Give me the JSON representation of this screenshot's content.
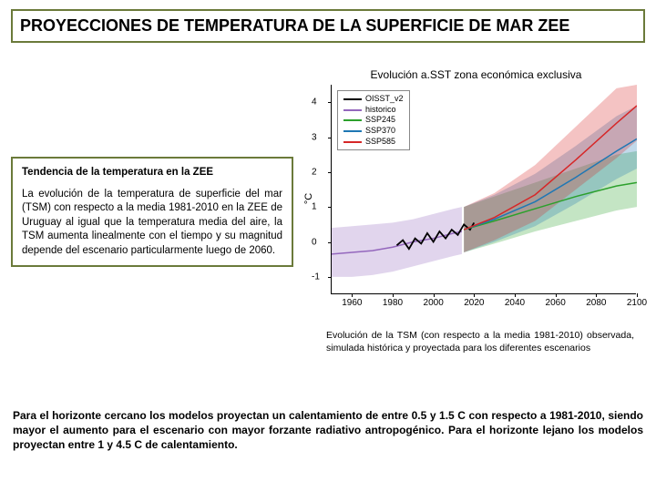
{
  "title": "PROYECCIONES DE TEMPERATURA DE LA SUPERFICIE DE MAR ZEE",
  "description": {
    "heading": "Tendencia de la temperatura en la ZEE",
    "body": "La evolución de la temperatura de superficie del mar (TSM) con respecto a la media 1981-2010 en la ZEE de Uruguay al igual que la temperatura media del aire, la TSM aumenta linealmente con el tiempo y su magnitud depende del escenario particularmente luego de 2060."
  },
  "chart": {
    "type": "line",
    "title": "Evolución a.SST zona económica exclusiva",
    "ylabel": "°C",
    "ylim": [
      -1.5,
      4.5
    ],
    "yticks": [
      -1,
      0,
      1,
      2,
      3,
      4
    ],
    "xlim": [
      1950,
      2100
    ],
    "xticks": [
      1960,
      1980,
      2000,
      2020,
      2040,
      2060,
      2080,
      2100
    ],
    "plot_bg": "#ffffff",
    "legend": {
      "position": "upper-left",
      "items": [
        {
          "label": "OISST_v2",
          "color": "#000000"
        },
        {
          "label": "historico",
          "color": "#9467bd"
        },
        {
          "label": "SSP245",
          "color": "#2ca02c"
        },
        {
          "label": "SSP370",
          "color": "#1f77b4"
        },
        {
          "label": "SSP585",
          "color": "#d62728"
        }
      ]
    },
    "series": [
      {
        "name": "historico",
        "color": "#9467bd",
        "band_color": "#9467bd",
        "line": [
          {
            "x": 1950,
            "y": -0.35
          },
          {
            "x": 1960,
            "y": -0.3
          },
          {
            "x": 1970,
            "y": -0.25
          },
          {
            "x": 1980,
            "y": -0.15
          },
          {
            "x": 1990,
            "y": 0.0
          },
          {
            "x": 2000,
            "y": 0.1
          },
          {
            "x": 2010,
            "y": 0.25
          },
          {
            "x": 2014,
            "y": 0.3
          }
        ],
        "band": [
          {
            "x": 1950,
            "lo": -1.0,
            "hi": 0.4
          },
          {
            "x": 1960,
            "lo": -1.0,
            "hi": 0.45
          },
          {
            "x": 1970,
            "lo": -0.95,
            "hi": 0.5
          },
          {
            "x": 1980,
            "lo": -0.85,
            "hi": 0.55
          },
          {
            "x": 1990,
            "lo": -0.7,
            "hi": 0.65
          },
          {
            "x": 2000,
            "lo": -0.55,
            "hi": 0.8
          },
          {
            "x": 2010,
            "lo": -0.4,
            "hi": 0.95
          },
          {
            "x": 2014,
            "lo": -0.35,
            "hi": 1.0
          }
        ]
      },
      {
        "name": "OISST_v2",
        "color": "#000000",
        "line": [
          {
            "x": 1982,
            "y": -0.1
          },
          {
            "x": 1985,
            "y": 0.05
          },
          {
            "x": 1988,
            "y": -0.2
          },
          {
            "x": 1991,
            "y": 0.1
          },
          {
            "x": 1994,
            "y": -0.05
          },
          {
            "x": 1997,
            "y": 0.25
          },
          {
            "x": 2000,
            "y": 0.0
          },
          {
            "x": 2003,
            "y": 0.3
          },
          {
            "x": 2006,
            "y": 0.1
          },
          {
            "x": 2009,
            "y": 0.35
          },
          {
            "x": 2012,
            "y": 0.2
          },
          {
            "x": 2015,
            "y": 0.5
          },
          {
            "x": 2018,
            "y": 0.35
          },
          {
            "x": 2020,
            "y": 0.55
          }
        ]
      },
      {
        "name": "SSP245",
        "color": "#2ca02c",
        "band_color": "#2ca02c",
        "line": [
          {
            "x": 2015,
            "y": 0.35
          },
          {
            "x": 2030,
            "y": 0.6
          },
          {
            "x": 2050,
            "y": 0.95
          },
          {
            "x": 2070,
            "y": 1.3
          },
          {
            "x": 2090,
            "y": 1.6
          },
          {
            "x": 2100,
            "y": 1.7
          }
        ],
        "band": [
          {
            "x": 2015,
            "lo": -0.3,
            "hi": 1.0
          },
          {
            "x": 2030,
            "lo": -0.05,
            "hi": 1.3
          },
          {
            "x": 2050,
            "lo": 0.3,
            "hi": 1.7
          },
          {
            "x": 2070,
            "lo": 0.6,
            "hi": 2.1
          },
          {
            "x": 2090,
            "lo": 0.9,
            "hi": 2.5
          },
          {
            "x": 2100,
            "lo": 1.0,
            "hi": 2.6
          }
        ]
      },
      {
        "name": "SSP370",
        "color": "#1f77b4",
        "band_color": "#1f77b4",
        "line": [
          {
            "x": 2015,
            "y": 0.35
          },
          {
            "x": 2030,
            "y": 0.65
          },
          {
            "x": 2050,
            "y": 1.15
          },
          {
            "x": 2070,
            "y": 1.85
          },
          {
            "x": 2090,
            "y": 2.6
          },
          {
            "x": 2100,
            "y": 2.95
          }
        ],
        "band": [
          {
            "x": 2015,
            "lo": -0.3,
            "hi": 1.0
          },
          {
            "x": 2030,
            "lo": 0.0,
            "hi": 1.35
          },
          {
            "x": 2050,
            "lo": 0.45,
            "hi": 1.95
          },
          {
            "x": 2070,
            "lo": 1.1,
            "hi": 2.75
          },
          {
            "x": 2090,
            "lo": 1.8,
            "hi": 3.6
          },
          {
            "x": 2100,
            "lo": 2.1,
            "hi": 3.9
          }
        ]
      },
      {
        "name": "SSP585",
        "color": "#d62728",
        "band_color": "#d62728",
        "line": [
          {
            "x": 2015,
            "y": 0.35
          },
          {
            "x": 2030,
            "y": 0.7
          },
          {
            "x": 2050,
            "y": 1.35
          },
          {
            "x": 2070,
            "y": 2.35
          },
          {
            "x": 2090,
            "y": 3.4
          },
          {
            "x": 2100,
            "y": 3.9
          }
        ],
        "band": [
          {
            "x": 2015,
            "lo": -0.3,
            "hi": 1.0
          },
          {
            "x": 2030,
            "lo": 0.05,
            "hi": 1.4
          },
          {
            "x": 2050,
            "lo": 0.6,
            "hi": 2.2
          },
          {
            "x": 2070,
            "lo": 1.5,
            "hi": 3.3
          },
          {
            "x": 2090,
            "lo": 2.4,
            "hi": 4.4
          },
          {
            "x": 2100,
            "lo": 2.9,
            "hi": 4.5
          }
        ]
      }
    ]
  },
  "caption": "Evolución de la TSM (con respecto a la media 1981-2010) observada, simulada histórica y proyectada para los diferentes escenarios",
  "footer": "Para el horizonte cercano los modelos proyectan un calentamiento de entre 0.5 y 1.5 C con respecto a 1981-2010, siendo mayor el aumento para el escenario con mayor forzante radiativo antropogénico. Para el horizonte lejano los modelos proyectan entre 1 y 4.5 C de calentamiento."
}
